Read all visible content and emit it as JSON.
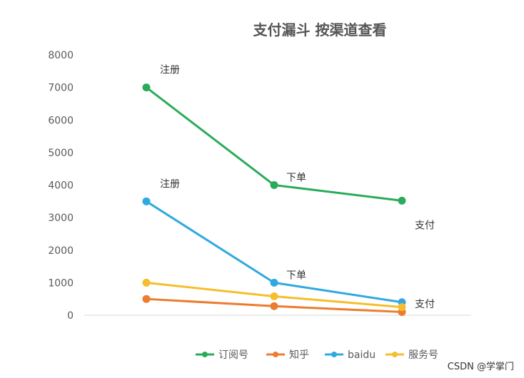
{
  "chart_data": {
    "type": "line",
    "title": "支付漏斗 按渠道查看",
    "xlabel": "",
    "ylabel": "",
    "categories": [
      "注册",
      "下单",
      "支付"
    ],
    "ylim": [
      0,
      8000
    ],
    "yticks": [
      0,
      1000,
      2000,
      3000,
      4000,
      5000,
      6000,
      7000,
      8000
    ],
    "grid": false,
    "legend_position": "bottom",
    "series": [
      {
        "name": "订阅号",
        "color": "#2bab5a",
        "values": [
          7000,
          4000,
          3520
        ]
      },
      {
        "name": "知乎",
        "color": "#ec7c30",
        "values": [
          500,
          280,
          100
        ]
      },
      {
        "name": "baidu",
        "color": "#2fa9e0",
        "values": [
          3500,
          1000,
          400
        ]
      },
      {
        "name": "服务号",
        "color": "#f5be2c",
        "values": [
          1000,
          580,
          250
        ]
      }
    ],
    "annotations": [
      {
        "text": "注册",
        "category": 0,
        "y": 7000
      },
      {
        "text": "下单",
        "category": 1,
        "y": 4000
      },
      {
        "text": "支付",
        "category": 2,
        "y": 3520
      },
      {
        "text": "注册",
        "category": 0,
        "y": 3500
      },
      {
        "text": "下单",
        "category": 1,
        "y": 1000
      },
      {
        "text": "支付",
        "category": 2,
        "y": 400
      }
    ]
  },
  "watermark": "CSDN @学掌门"
}
